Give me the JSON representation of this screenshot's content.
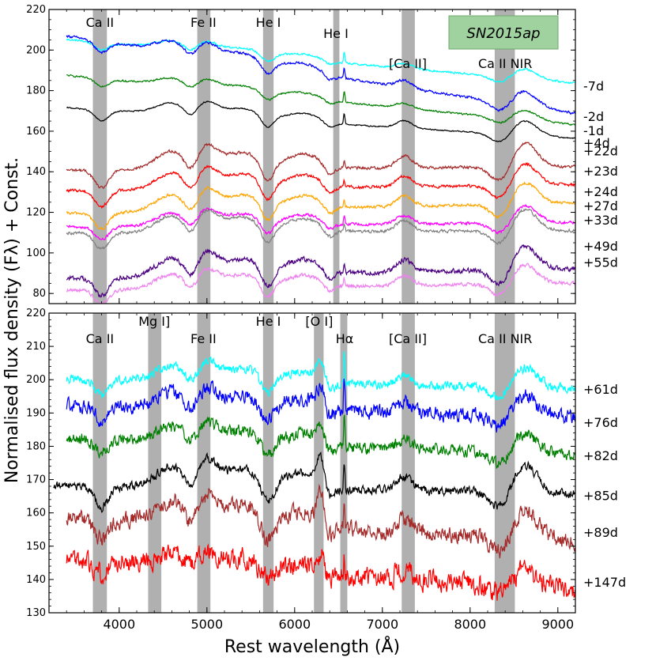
{
  "chart_data": {
    "type": "line",
    "title": "",
    "xlabel": "Rest wavelength (Å)",
    "ylabel": "Normalised flux density (Fλ) + Const.",
    "legend": "SN2015ap",
    "legend_color": "#9fd29f",
    "band_color": "#b0b0b0",
    "x_ticks": [
      "4000",
      "5000",
      "6000",
      "7000",
      "8000",
      "9000"
    ],
    "xlim": [
      3200,
      9200
    ],
    "panels": [
      {
        "id": "top",
        "ylim": [
          75,
          220
        ],
        "y_ticks": [
          "80",
          "100",
          "120",
          "140",
          "160",
          "180",
          "200",
          "220"
        ],
        "bands": [
          {
            "label": "Ca II",
            "from": 3700,
            "to": 3860,
            "label_x": 3780,
            "label_level": 1
          },
          {
            "label": "Fe II",
            "from": 4890,
            "to": 5040,
            "label_x": 4960,
            "label_level": 1
          },
          {
            "label": "He I",
            "from": 5640,
            "to": 5760,
            "label_x": 5700,
            "label_level": 1
          },
          {
            "label": "He I",
            "from": 6440,
            "to": 6510,
            "label_x": 6470,
            "label_level": 2
          },
          {
            "label": "[Ca II]",
            "from": 7220,
            "to": 7370,
            "label_x": 7290,
            "label_level": 3
          },
          {
            "label": "Ca II NIR",
            "from": 8280,
            "to": 8510,
            "label_x": 8400,
            "label_level": 3
          }
        ],
        "series": [
          {
            "name": "-7d",
            "color": "#00ffff",
            "start": 3400,
            "base": 203,
            "slope": -3.7,
            "amp": 4,
            "noise": 0.8,
            "label_level": 182
          },
          {
            "name": "-2d",
            "color": "#0000ff",
            "start": 3400,
            "base": 203,
            "slope": -6.6,
            "amp": 6,
            "noise": 1.0,
            "label_level": 167
          },
          {
            "name": "-1d",
            "color": "#008000",
            "start": 3400,
            "base": 185,
            "slope": -4.2,
            "amp": 4,
            "noise": 0.7,
            "label_level": 160
          },
          {
            "name": "+4d",
            "color": "#000000",
            "start": 3400,
            "base": 170,
            "slope": -2.6,
            "amp": 6,
            "noise": 0.5,
            "label_level": 154
          },
          {
            "name": "+22d",
            "color": "#a52a2a",
            "start": 3400,
            "base": 141,
            "slope": 0.3,
            "amp": 10,
            "noise": 1.2,
            "label_level": 150
          },
          {
            "name": "+23d",
            "color": "#ff0000",
            "start": 3400,
            "base": 131,
            "slope": 0.5,
            "amp": 9,
            "noise": 1.2,
            "label_level": 140
          },
          {
            "name": "+24d",
            "color": "#ffa500",
            "start": 3400,
            "base": 120,
            "slope": 0.9,
            "amp": 9,
            "noise": 1.2,
            "label_level": 130
          },
          {
            "name": "+27d",
            "color": "#ff00ff",
            "start": 3400,
            "base": 113,
            "slope": 0.4,
            "amp": 7,
            "noise": 1.2,
            "label_level": 123
          },
          {
            "name": "+33d",
            "color": "#808080",
            "start": 3400,
            "base": 110,
            "slope": 0.2,
            "amp": 9,
            "noise": 1.2,
            "label_level": 116
          },
          {
            "name": "+49d",
            "color": "#4b0082",
            "start": 3400,
            "base": 88,
            "slope": 0.8,
            "amp": 10,
            "noise": 2.0,
            "label_level": 103
          },
          {
            "name": "+55d",
            "color": "#ee82ee",
            "start": 3400,
            "base": 82,
            "slope": 0.6,
            "amp": 8,
            "noise": 1.5,
            "label_level": 95
          }
        ]
      },
      {
        "id": "bottom",
        "ylim": [
          130,
          220
        ],
        "y_ticks": [
          "130",
          "140",
          "150",
          "160",
          "170",
          "180",
          "190",
          "200",
          "210",
          "220"
        ],
        "bands": [
          {
            "label": "Ca II",
            "from": 3700,
            "to": 3860,
            "label_x": 3780,
            "label_level": 2
          },
          {
            "label": "Mg I]",
            "from": 4330,
            "to": 4480,
            "label_x": 4400,
            "label_level": 1
          },
          {
            "label": "Fe II",
            "from": 4890,
            "to": 5040,
            "label_x": 4960,
            "label_level": 2
          },
          {
            "label": "He I",
            "from": 5640,
            "to": 5760,
            "label_x": 5700,
            "label_level": 1
          },
          {
            "label": "[O I]",
            "from": 6220,
            "to": 6330,
            "label_x": 6280,
            "label_level": 1
          },
          {
            "label": "Hα",
            "from": 6520,
            "to": 6600,
            "label_x": 6570,
            "label_level": 2
          },
          {
            "label": "[Ca II]",
            "from": 7220,
            "to": 7370,
            "label_x": 7290,
            "label_level": 2
          },
          {
            "label": "Ca II NIR",
            "from": 8280,
            "to": 8510,
            "label_x": 8400,
            "label_level": 2
          }
        ],
        "series": [
          {
            "name": "+61d",
            "color": "#00ffff",
            "start": 3400,
            "base": 200,
            "slope": -0.5,
            "amp": 5,
            "noise": 2.2,
            "label_level": 197
          },
          {
            "name": "+76d",
            "color": "#0000ff",
            "start": 3400,
            "base": 192,
            "slope": -0.6,
            "amp": 5,
            "noise": 3.5,
            "label_level": 187
          },
          {
            "name": "+82d",
            "color": "#008000",
            "start": 3400,
            "base": 182,
            "slope": -0.9,
            "amp": 5,
            "noise": 3.0,
            "label_level": 177
          },
          {
            "name": "+85d",
            "color": "#000000",
            "start": 3250,
            "base": 168,
            "slope": -0.4,
            "amp": 7,
            "noise": 2.2,
            "label_level": 165
          },
          {
            "name": "+89d",
            "color": "#a52a2a",
            "start": 3400,
            "base": 158,
            "slope": -1.2,
            "amp": 7,
            "noise": 4.0,
            "label_level": 154
          },
          {
            "name": "+147d",
            "color": "#ff0000",
            "start": 3400,
            "base": 145,
            "slope": -1.5,
            "amp": 4,
            "noise": 5.0,
            "label_level": 139
          }
        ]
      }
    ]
  }
}
